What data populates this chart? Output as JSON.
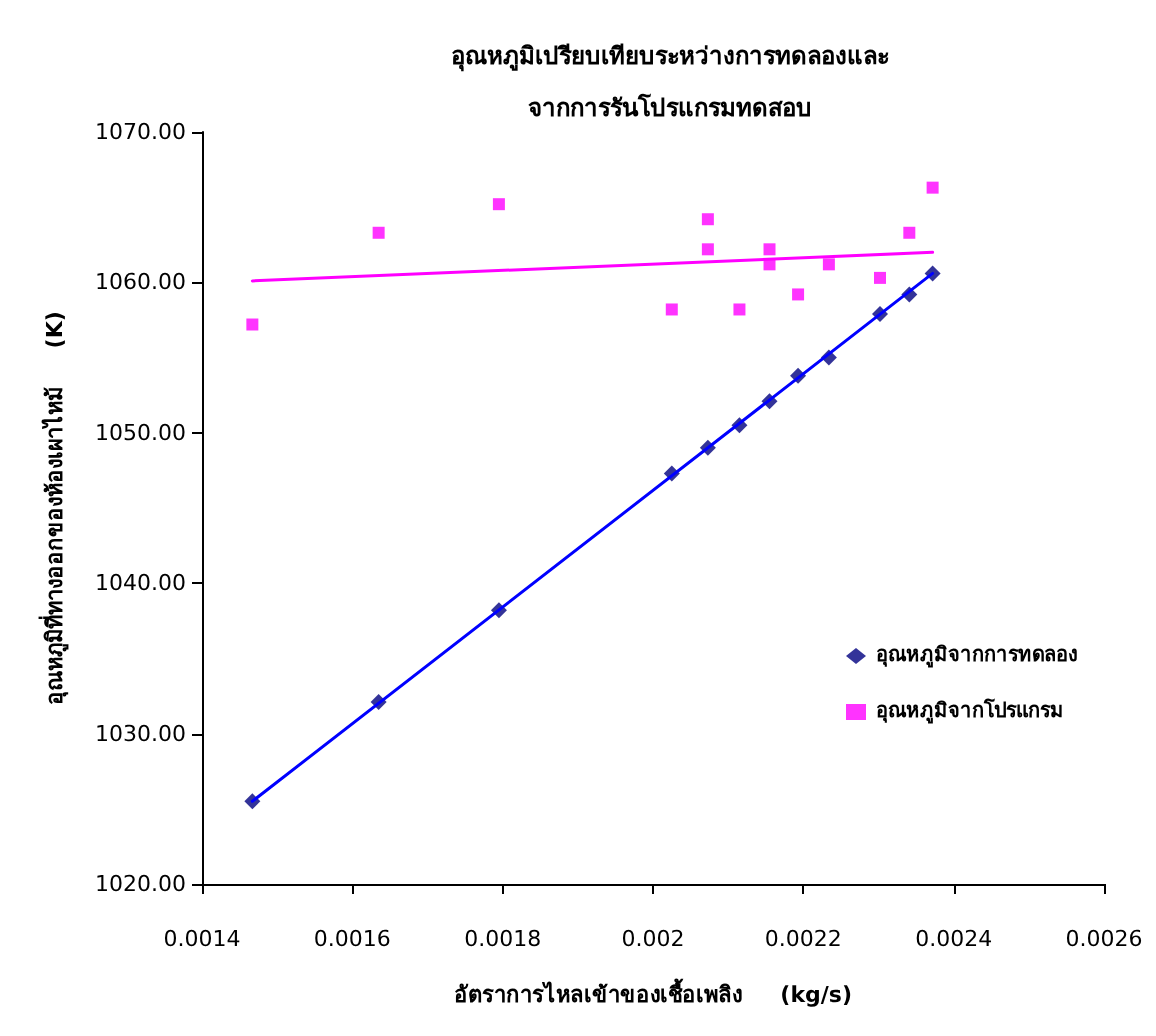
{
  "chart_data": {
    "type": "scatter",
    "title": "อุณหภูมิเปรียบเทียบระหว่างการทดลองและ\nจากการรันโปรแกรมทดสอบ",
    "xlabel": "อัตราการไหลเข้าของเชื้อเพลิง     (kg/s)",
    "ylabel": "อุณหภูมิที่ทางออกของห้องเผาไหม้     (K)",
    "xlim": [
      0.0014,
      0.0026
    ],
    "xticks": [
      0.0014,
      0.0016,
      0.0018,
      0.002,
      0.0022,
      0.0024,
      0.0026
    ],
    "ylim": [
      1020,
      1070
    ],
    "yticks": [
      {
        "value": 1020,
        "label": "1020.00"
      },
      {
        "value": 1030,
        "label": "1030.00"
      },
      {
        "value": 1040,
        "label": "1040.00"
      },
      {
        "value": 1050,
        "label": "1050.00"
      },
      {
        "value": 1060,
        "label": "1060.00"
      },
      {
        "value": 1070,
        "label": "1070.00"
      }
    ],
    "grid": false,
    "legend": "right",
    "series": [
      {
        "name": "อุณหภูมิจากการทดลอง",
        "marker": "diamond",
        "color": "#000080",
        "x": [
          0.001467,
          0.001635,
          0.001795,
          0.002025,
          0.002073,
          0.002115,
          0.002155,
          0.002193,
          0.002234,
          0.002302,
          0.002341,
          0.002372
        ],
        "values": [
          1025.5,
          1032.1,
          1038.2,
          1047.3,
          1049.0,
          1050.5,
          1052.1,
          1053.8,
          1055.0,
          1057.9,
          1059.2,
          1060.6
        ]
      },
      {
        "type": "line",
        "marker": "none",
        "line_style": "solid",
        "color": "#0000ff",
        "x": [
          0.001467,
          0.002372
        ],
        "values": [
          1025.5,
          1060.6
        ]
      },
      {
        "name": "อุณหภูมิจากโปรแกรม",
        "marker": "square",
        "color": "#ff00ff",
        "x": [
          0.001467,
          0.001635,
          0.001795,
          0.002025,
          0.002073,
          0.002073,
          0.002115,
          0.002155,
          0.002155,
          0.002193,
          0.002234,
          0.002302,
          0.002341,
          0.002372
        ],
        "values": [
          1057.2,
          1063.3,
          1065.2,
          1058.2,
          1064.2,
          1062.2,
          1058.2,
          1062.2,
          1061.2,
          1059.2,
          1061.2,
          1060.3,
          1063.3,
          1066.3
        ]
      },
      {
        "type": "line",
        "marker": "none",
        "line_style": "solid",
        "color": "#ff00ff",
        "x": [
          0.001467,
          0.002372
        ],
        "values": [
          1060.1,
          1062.0
        ]
      }
    ]
  }
}
